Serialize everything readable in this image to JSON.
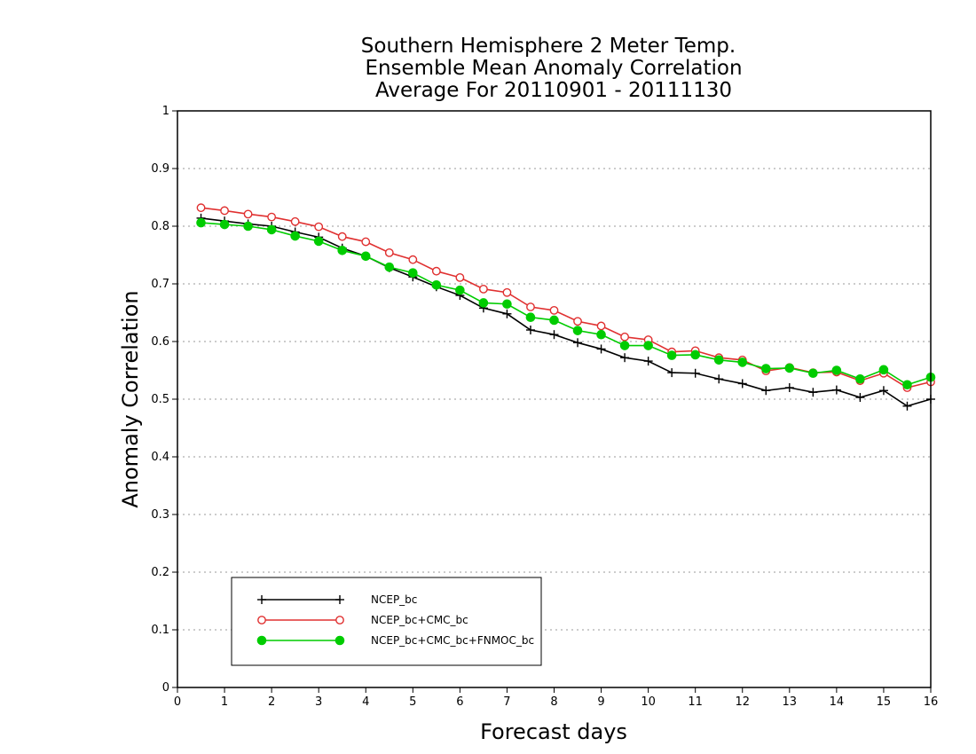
{
  "chart_data": {
    "type": "line",
    "title": [
      "Southern Hemisphere 2 Meter Temp.",
      "Ensemble Mean Anomaly Correlation",
      "Average For 20110901 - 20111130"
    ],
    "xlabel": "Forecast days",
    "ylabel": "Anomaly Correlation",
    "xlim": [
      0,
      16
    ],
    "ylim": [
      0,
      1
    ],
    "x_ticks": [
      "0",
      "1",
      "2",
      "3",
      "4",
      "5",
      "6",
      "7",
      "8",
      "9",
      "10",
      "11",
      "12",
      "13",
      "14",
      "15",
      "16"
    ],
    "y_ticks": [
      "0",
      "0.1",
      "0.2",
      "0.3",
      "0.4",
      "0.5",
      "0.6",
      "0.7",
      "0.8",
      "0.9",
      "1"
    ],
    "grid": "horizontal dotted",
    "legend_position": "bottom-left",
    "x": [
      0.5,
      1,
      1.5,
      2,
      2.5,
      3,
      3.5,
      4,
      4.5,
      5,
      5.5,
      6,
      6.5,
      7,
      7.5,
      8,
      8.5,
      9,
      9.5,
      10,
      10.5,
      11,
      11.5,
      12,
      12.5,
      13,
      13.5,
      14,
      14.5,
      15,
      15.5,
      16
    ],
    "series": [
      {
        "name": "NCEP_bc",
        "color": "#000000",
        "marker": "plus",
        "values": [
          0.814,
          0.809,
          0.804,
          0.8,
          0.79,
          0.781,
          0.762,
          0.748,
          0.728,
          0.712,
          0.695,
          0.68,
          0.658,
          0.648,
          0.62,
          0.612,
          0.598,
          0.587,
          0.572,
          0.566,
          0.546,
          0.545,
          0.535,
          0.527,
          0.515,
          0.52,
          0.512,
          0.516,
          0.503,
          0.515,
          0.488,
          0.5
        ]
      },
      {
        "name": "NCEP_bc+CMC_bc",
        "color": "#e03030",
        "marker": "open-circle",
        "values": [
          0.832,
          0.827,
          0.821,
          0.816,
          0.808,
          0.799,
          0.782,
          0.773,
          0.754,
          0.742,
          0.722,
          0.711,
          0.691,
          0.685,
          0.66,
          0.654,
          0.635,
          0.627,
          0.608,
          0.603,
          0.582,
          0.584,
          0.572,
          0.568,
          0.549,
          0.555,
          0.546,
          0.547,
          0.532,
          0.545,
          0.52,
          0.53
        ]
      },
      {
        "name": "NCEP_bc+CMC_bc+FNMOC_bc",
        "color": "#00cc00",
        "marker": "filled-circle",
        "values": [
          0.806,
          0.803,
          0.8,
          0.794,
          0.783,
          0.774,
          0.758,
          0.748,
          0.729,
          0.719,
          0.698,
          0.689,
          0.667,
          0.665,
          0.642,
          0.637,
          0.619,
          0.612,
          0.593,
          0.593,
          0.576,
          0.577,
          0.568,
          0.564,
          0.553,
          0.554,
          0.545,
          0.55,
          0.535,
          0.551,
          0.525,
          0.538
        ]
      }
    ]
  }
}
